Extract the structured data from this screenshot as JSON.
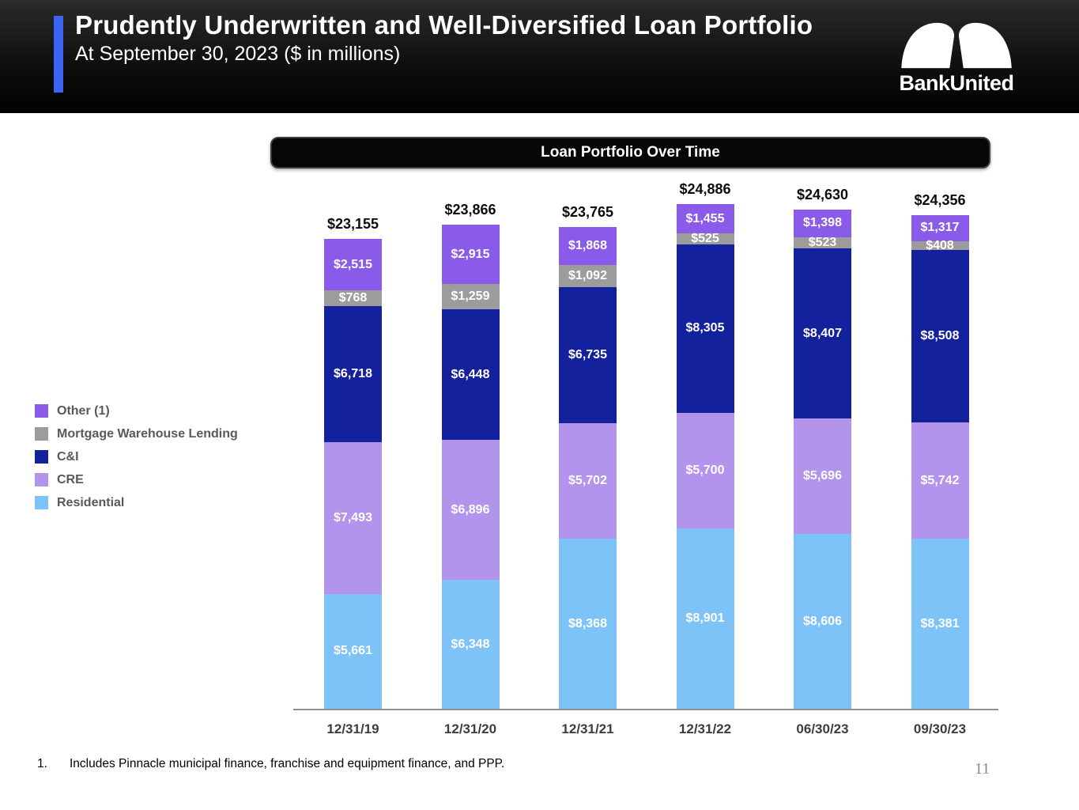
{
  "header": {
    "title": "Prudently Underwritten and Well-Diversified Loan Portfolio",
    "subtitle": "At September 30, 2023 ($ in millions)",
    "logo_text": "BankUnited"
  },
  "colors": {
    "accent_blue": "#3D64F0",
    "header_bg": "#0a0a0a",
    "badge_bg": "#060606",
    "axis_line": "#8f8f8f",
    "legend_text": "#595959",
    "total_label": "#0c0c0c"
  },
  "chart_data": {
    "type": "bar",
    "stacked": true,
    "title": "Loan Portfolio Over Time",
    "xlabel": "",
    "ylabel": "",
    "ylim": [
      0,
      25000
    ],
    "grid": false,
    "legend_position": "left",
    "value_prefix": "$",
    "categories": [
      "12/31/19",
      "12/31/20",
      "12/31/21",
      "12/31/22",
      "06/30/23",
      "09/30/23"
    ],
    "series": [
      {
        "name": "Residential",
        "color": "#7EC3F8",
        "values": [
          5661,
          6348,
          8368,
          8901,
          8606,
          8381
        ]
      },
      {
        "name": "CRE",
        "color": "#B294EC",
        "values": [
          7493,
          6896,
          5702,
          5700,
          5696,
          5742
        ]
      },
      {
        "name": "C&I",
        "color": "#14219C",
        "values": [
          6718,
          6448,
          6735,
          8305,
          8407,
          8508
        ]
      },
      {
        "name": "Mortgage Warehouse Lending",
        "color": "#9C9C9C",
        "values": [
          768,
          1259,
          1092,
          525,
          523,
          408
        ]
      },
      {
        "name": "Other (1)",
        "color": "#8A5BE9",
        "values": [
          2515,
          2915,
          1868,
          1455,
          1398,
          1317
        ]
      }
    ],
    "totals": [
      23155,
      23866,
      23765,
      24886,
      24630,
      24356
    ]
  },
  "footnote": {
    "number": "1.",
    "text": "Includes Pinnacle municipal finance, franchise and equipment finance, and PPP."
  },
  "page_number": "11"
}
